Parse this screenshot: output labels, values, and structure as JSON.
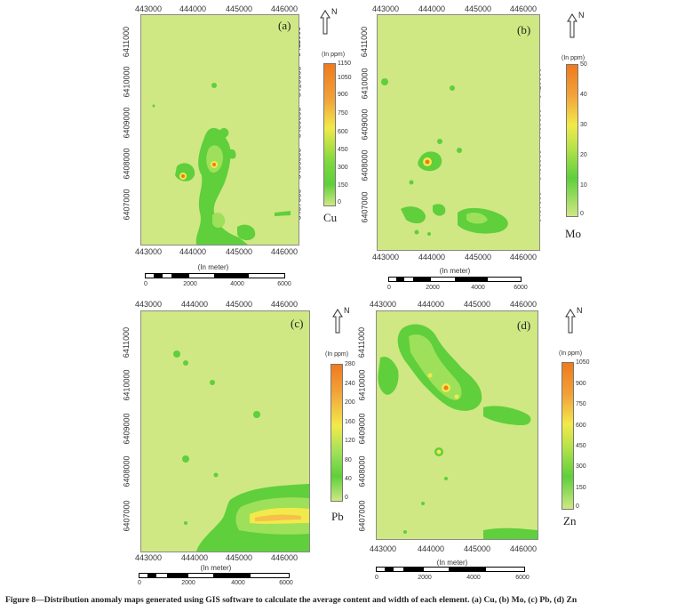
{
  "figure": {
    "caption": "Figure 8—Distribution anomaly maps generated using GIS software to calculate the average content and width of each element. (a) Cu, (b) Mo, (c) Pb, (d) Zn"
  },
  "common": {
    "x_ticks": [
      "443000",
      "444000",
      "445000",
      "446000"
    ],
    "y_ticks": [
      "6411000",
      "6410000",
      "6409000",
      "6408000",
      "6407000"
    ],
    "north_label": "N",
    "scale_title": "(In meter)",
    "scale_ticks": [
      "0",
      "2000",
      "4000",
      "6000"
    ],
    "legend_unit": "(In ppm)"
  },
  "panels": [
    {
      "id": "a",
      "label": "(a)",
      "element": "Cu",
      "legend_ticks": [
        "1150",
        "1050",
        "900",
        "750",
        "600",
        "450",
        "300",
        "150",
        "0"
      ]
    },
    {
      "id": "b",
      "label": "(b)",
      "element": "Mo",
      "legend_ticks": [
        "50",
        "40",
        "30",
        "20",
        "10",
        "0"
      ]
    },
    {
      "id": "c",
      "label": "(c)",
      "element": "Pb",
      "legend_ticks": [
        "280",
        "240",
        "200",
        "160",
        "120",
        "80",
        "40",
        "0"
      ]
    },
    {
      "id": "d",
      "label": "(d)",
      "element": "Zn",
      "legend_ticks": [
        "1050",
        "900",
        "750",
        "600",
        "450",
        "300",
        "150",
        "0"
      ]
    }
  ],
  "colors": {
    "background": "#cfe883",
    "low": "#5fcf3c",
    "mid": "#f2ea4a",
    "high": "#f07a1e"
  }
}
